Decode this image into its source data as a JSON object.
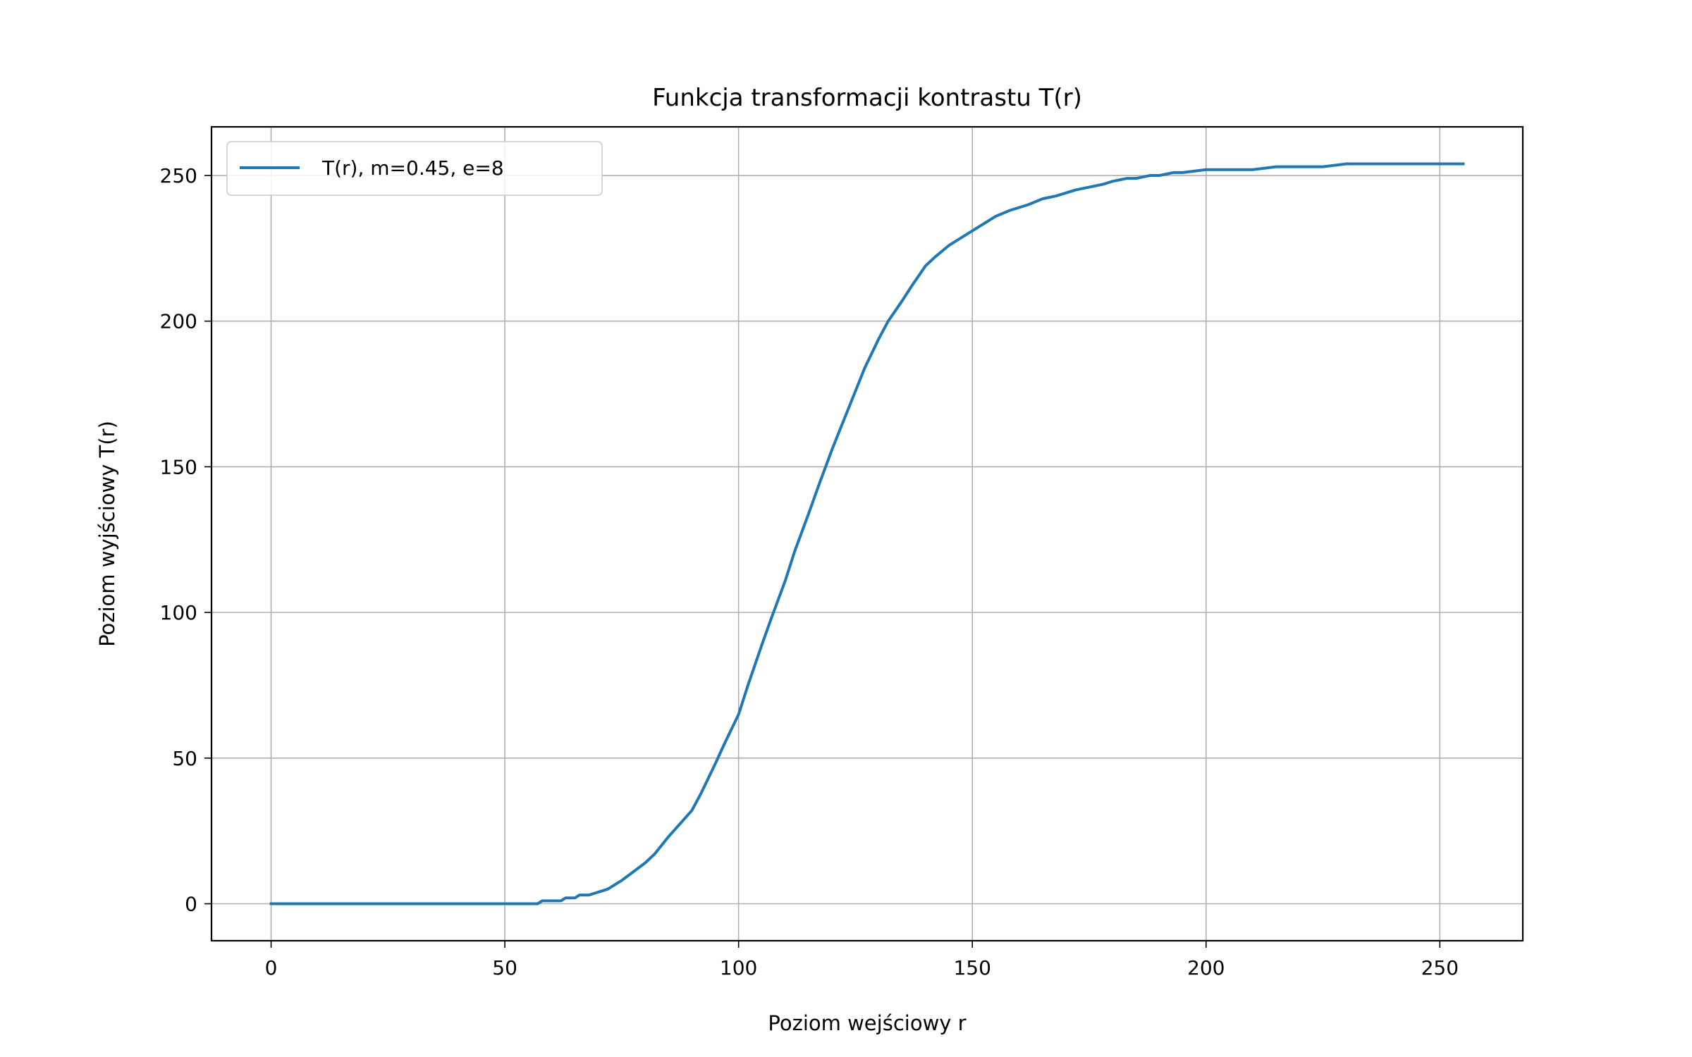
{
  "chart_data": {
    "type": "line",
    "title": "Funkcja transformacji kontrastu T(r)",
    "xlabel": "Poziom wejściowy r",
    "ylabel": "Poziom wyjściowy T(r)",
    "xlim": [
      -12.75,
      267.75
    ],
    "ylim": [
      -12.7,
      266.7
    ],
    "xticks": [
      0,
      50,
      100,
      150,
      200,
      250
    ],
    "yticks": [
      0,
      50,
      100,
      150,
      200,
      250
    ],
    "grid": true,
    "legend_position": "top-left",
    "series": [
      {
        "name": "T(r), m=0.45, e=8",
        "color": "#1f77b4",
        "x": [
          0,
          10,
          20,
          30,
          40,
          50,
          55,
          57,
          58,
          60,
          62,
          63,
          65,
          66,
          68,
          70,
          72,
          75,
          80,
          82,
          85,
          90,
          92,
          95,
          97,
          100,
          102,
          105,
          107,
          110,
          112,
          115,
          117,
          120,
          122,
          125,
          127,
          130,
          132,
          135,
          137,
          140,
          142,
          145,
          147,
          150,
          152,
          155,
          158,
          160,
          162,
          165,
          168,
          170,
          172,
          175,
          178,
          180,
          183,
          185,
          188,
          190,
          193,
          195,
          200,
          205,
          210,
          215,
          220,
          225,
          230,
          235,
          240,
          245,
          250,
          255
        ],
        "y": [
          0,
          0,
          0,
          0,
          0,
          0,
          0,
          0,
          1,
          1,
          1,
          2,
          2,
          3,
          3,
          4,
          5,
          8,
          14,
          17,
          23,
          32,
          38,
          48,
          55,
          65,
          75,
          89,
          98,
          111,
          121,
          134,
          143,
          156,
          164,
          176,
          184,
          194,
          200,
          207,
          212,
          219,
          222,
          226,
          228,
          231,
          233,
          236,
          238,
          239,
          240,
          242,
          243,
          244,
          245,
          246,
          247,
          248,
          249,
          249,
          250,
          250,
          251,
          251,
          252,
          252,
          252,
          253,
          253,
          253,
          254,
          254,
          254,
          254,
          254,
          254
        ]
      }
    ]
  }
}
